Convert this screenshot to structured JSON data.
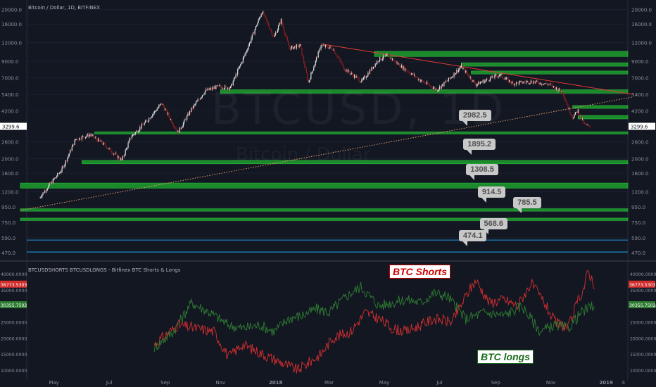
{
  "header": {
    "title": "Bitcoin / Dollar, 1D, BITFINEX"
  },
  "subpanel": {
    "title": "BTCUSDSHORTS BTCUSDLONGS - Bitfinex BTC Shorts & Longs"
  },
  "watermark": {
    "symbol": "BTCUSD, 1D",
    "name": "Bitcoin / Dollar"
  },
  "colors": {
    "background": "#131722",
    "zone": "#1b8a2a",
    "zone_edge": "#2fbf44",
    "trend_red": "#e53935",
    "support_dotted": "#e8a06a",
    "blue_line": "#1e88c8",
    "candle_up": "#e0e0e0",
    "candle_down": "#8b1e1e",
    "shorts": "#d32f2f",
    "longs": "#2e7d32"
  },
  "chart_data": [
    {
      "type": "candlestick",
      "title": "Bitcoin / Dollar, 1D, BITFINEX",
      "y_scale": "log",
      "ylim": [
        440,
        21500
      ],
      "y_ticks": [
        "20000.0",
        "16000.0",
        "12000.0",
        "9000.0",
        "7000.0",
        "5400.0",
        "4200.0",
        "3299.6",
        "2600.0",
        "2000.0",
        "1600.0",
        "1200.0",
        "950.0",
        "750.0",
        "590.0",
        "470.0"
      ],
      "last_price": "3299.6",
      "x_ticks": [
        "May",
        "Jul",
        "Sep",
        "Nov",
        "2018",
        "Mar",
        "May",
        "Jul",
        "Sep",
        "Nov",
        "2019",
        "4"
      ],
      "price_path": [
        [
          "2017-04-15",
          1100
        ],
        [
          "2017-05-10",
          1700
        ],
        [
          "2017-05-25",
          2700
        ],
        [
          "2017-06-10",
          2900
        ],
        [
          "2017-06-25",
          2500
        ],
        [
          "2017-07-15",
          1950
        ],
        [
          "2017-07-25",
          2800
        ],
        [
          "2017-08-10",
          3500
        ],
        [
          "2017-08-28",
          4700
        ],
        [
          "2017-09-15",
          3000
        ],
        [
          "2017-09-30",
          4300
        ],
        [
          "2017-10-15",
          5700
        ],
        [
          "2017-10-30",
          6100
        ],
        [
          "2017-11-12",
          6000
        ],
        [
          "2017-11-28",
          10000
        ],
        [
          "2017-12-17",
          19500
        ],
        [
          "2017-12-30",
          13000
        ],
        [
          "2018-01-07",
          17000
        ],
        [
          "2018-01-16",
          11000
        ],
        [
          "2018-01-28",
          11500
        ],
        [
          "2018-02-06",
          6500
        ],
        [
          "2018-02-20",
          11500
        ],
        [
          "2018-03-05",
          11000
        ],
        [
          "2018-03-18",
          8000
        ],
        [
          "2018-04-06",
          6600
        ],
        [
          "2018-04-25",
          9300
        ],
        [
          "2018-05-05",
          9800
        ],
        [
          "2018-05-20",
          8300
        ],
        [
          "2018-06-10",
          6700
        ],
        [
          "2018-06-28",
          5800
        ],
        [
          "2018-07-10",
          6700
        ],
        [
          "2018-07-25",
          8300
        ],
        [
          "2018-08-10",
          6300
        ],
        [
          "2018-08-28",
          7000
        ],
        [
          "2018-09-05",
          7300
        ],
        [
          "2018-09-20",
          6400
        ],
        [
          "2018-10-10",
          6600
        ],
        [
          "2018-10-30",
          6300
        ],
        [
          "2018-11-14",
          5600
        ],
        [
          "2018-11-20",
          4400
        ],
        [
          "2018-11-25",
          3800
        ],
        [
          "2018-12-01",
          4200
        ],
        [
          "2018-12-08",
          3400
        ],
        [
          "2018-12-14",
          3250
        ]
      ],
      "zones": [
        {
          "from": "2018-04-20",
          "to": "2019-01-31",
          "y": [
            9700,
            10500
          ]
        },
        {
          "from": "2018-07-25",
          "to": "2019-01-31",
          "y": [
            8350,
            8800
          ]
        },
        {
          "from": "2018-08-05",
          "to": "2019-01-31",
          "y": [
            7400,
            7750
          ]
        },
        {
          "from": "2017-11-01",
          "to": "2019-01-31",
          "y": [
            5500,
            5800
          ]
        },
        {
          "from": "2018-11-25",
          "to": "2019-01-31",
          "y": [
            4350,
            4550
          ]
        },
        {
          "from": "2018-12-01",
          "to": "2019-01-31",
          "y": [
            3700,
            3900
          ]
        },
        {
          "from": "2017-06-15",
          "to": "2019-01-31",
          "y": [
            2930,
            3030
          ]
        },
        {
          "from": "2017-06-01",
          "to": "2019-01-31",
          "y": [
            1850,
            1950
          ]
        },
        {
          "from": "2017-03-25",
          "to": "2019-01-31",
          "y": [
            1270,
            1375
          ]
        },
        {
          "from": "2017-03-25",
          "to": "2019-01-31",
          "y": [
            890,
            925
          ]
        },
        {
          "from": "2017-03-25",
          "to": "2019-01-31",
          "y": [
            770,
            800
          ]
        }
      ],
      "blue_lines": [
        570,
        474
      ],
      "trendline_red": {
        "from": [
          "2018-02-20",
          11800
        ],
        "to": [
          "2019-01-31",
          5400
        ]
      },
      "trendline_dotted": {
        "from": [
          "2017-03-25",
          900
        ],
        "to": [
          "2019-01-31",
          5200
        ]
      },
      "callouts": [
        {
          "label": "2982.5",
          "at": "2018-07-20"
        },
        {
          "label": "1895.2",
          "at": "2018-07-25"
        },
        {
          "label": "1308.5",
          "at": "2018-07-28"
        },
        {
          "label": "914.5",
          "at": "2018-08-10"
        },
        {
          "label": "785.5",
          "at": "2018-09-18"
        },
        {
          "label": "568.6",
          "at": "2018-08-12"
        },
        {
          "label": "474.1",
          "at": "2018-07-20"
        }
      ]
    },
    {
      "type": "line",
      "title": "BTCUSDSHORTS BTCUSDLONGS - Bitfinex BTC Shorts & Longs",
      "ylim": [
        8000,
        42000
      ],
      "y_ticks": [
        "40000.0000",
        "35000.0000",
        "30000.0000",
        "25000.0000",
        "20000.0000",
        "15000.0000",
        "10000.0000"
      ],
      "series": [
        {
          "name": "BTC Shorts",
          "last_value": "36773.5303",
          "points": [
            [
              "2017-08-20",
              18000
            ],
            [
              "2017-09-15",
              24000
            ],
            [
              "2017-10-05",
              23000
            ],
            [
              "2017-10-25",
              22000
            ],
            [
              "2017-11-10",
              14000
            ],
            [
              "2017-11-25",
              18000
            ],
            [
              "2017-12-10",
              16000
            ],
            [
              "2017-12-25",
              14000
            ],
            [
              "2018-01-10",
              12000
            ],
            [
              "2018-01-25",
              10000
            ],
            [
              "2018-02-05",
              12000
            ],
            [
              "2018-02-20",
              15000
            ],
            [
              "2018-03-05",
              20000
            ],
            [
              "2018-03-25",
              22000
            ],
            [
              "2018-04-10",
              28000
            ],
            [
              "2018-04-25",
              26000
            ],
            [
              "2018-05-10",
              23000
            ],
            [
              "2018-05-25",
              22000
            ],
            [
              "2018-06-10",
              24000
            ],
            [
              "2018-06-25",
              26000
            ],
            [
              "2018-07-15",
              25000
            ],
            [
              "2018-07-30",
              33000
            ],
            [
              "2018-08-10",
              38000
            ],
            [
              "2018-08-25",
              31000
            ],
            [
              "2018-09-10",
              32000
            ],
            [
              "2018-09-25",
              30000
            ],
            [
              "2018-10-10",
              37000
            ],
            [
              "2018-10-25",
              31000
            ],
            [
              "2018-11-05",
              25000
            ],
            [
              "2018-11-20",
              23000
            ],
            [
              "2018-11-30",
              31000
            ],
            [
              "2018-12-08",
              36000
            ],
            [
              "2018-12-12",
              41000
            ],
            [
              "2018-12-19",
              36700
            ]
          ]
        },
        {
          "name": "BTC longs",
          "last_value": "30355.7502",
          "points": [
            [
              "2017-08-20",
              17000
            ],
            [
              "2017-09-10",
              22000
            ],
            [
              "2017-09-30",
              31000
            ],
            [
              "2017-10-20",
              28000
            ],
            [
              "2017-11-10",
              24000
            ],
            [
              "2017-11-25",
              23000
            ],
            [
              "2017-12-15",
              24000
            ],
            [
              "2017-12-30",
              22000
            ],
            [
              "2018-01-15",
              26000
            ],
            [
              "2018-01-30",
              27000
            ],
            [
              "2018-02-15",
              29000
            ],
            [
              "2018-03-01",
              28000
            ],
            [
              "2018-03-20",
              33000
            ],
            [
              "2018-04-05",
              36000
            ],
            [
              "2018-04-25",
              30000
            ],
            [
              "2018-05-10",
              31000
            ],
            [
              "2018-05-25",
              32000
            ],
            [
              "2018-06-10",
              31000
            ],
            [
              "2018-06-25",
              34000
            ],
            [
              "2018-07-10",
              33000
            ],
            [
              "2018-07-30",
              26000
            ],
            [
              "2018-08-20",
              28000
            ],
            [
              "2018-09-10",
              27000
            ],
            [
              "2018-09-30",
              30000
            ],
            [
              "2018-10-20",
              22000
            ],
            [
              "2018-11-05",
              24000
            ],
            [
              "2018-11-20",
              23000
            ],
            [
              "2018-12-05",
              28000
            ],
            [
              "2018-12-19",
              30300
            ]
          ]
        }
      ],
      "annotations": [
        "BTC Shorts",
        "BTC longs"
      ]
    }
  ]
}
